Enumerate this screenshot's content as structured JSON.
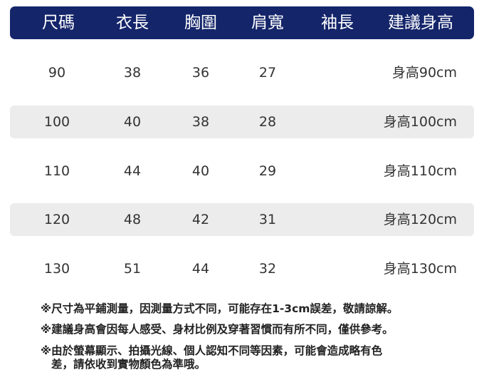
{
  "header": [
    "尺碼",
    "衣長",
    "胸圍",
    "肩寬",
    "袖長",
    "建議身高"
  ],
  "rows": [
    [
      "90",
      "38",
      "36",
      "27",
      "",
      "身高90cm"
    ],
    [
      "100",
      "40",
      "38",
      "28",
      "",
      "身高100cm"
    ],
    [
      "110",
      "44",
      "40",
      "29",
      "",
      "身高110cm"
    ],
    [
      "120",
      "48",
      "42",
      "31",
      "",
      "身高120cm"
    ],
    [
      "130",
      "51",
      "44",
      "32",
      "",
      "身高130cm"
    ]
  ],
  "notes": [
    "※尺寸為平鋪測量，因測量方式不同，可能存在1-3cm誤差，敬請諒解。",
    "※建議身高會因每人感受、身材比例及穿著習慣而有所不同，僅供參考。",
    "※由於螢幕顯示、拍攝光線、個人認知不同等因素，可能會造成略有色",
    "差，請依收到實物顏色為準哦。"
  ],
  "colors": {
    "header_bg": "#14256a",
    "row_shade": "#ececec"
  }
}
